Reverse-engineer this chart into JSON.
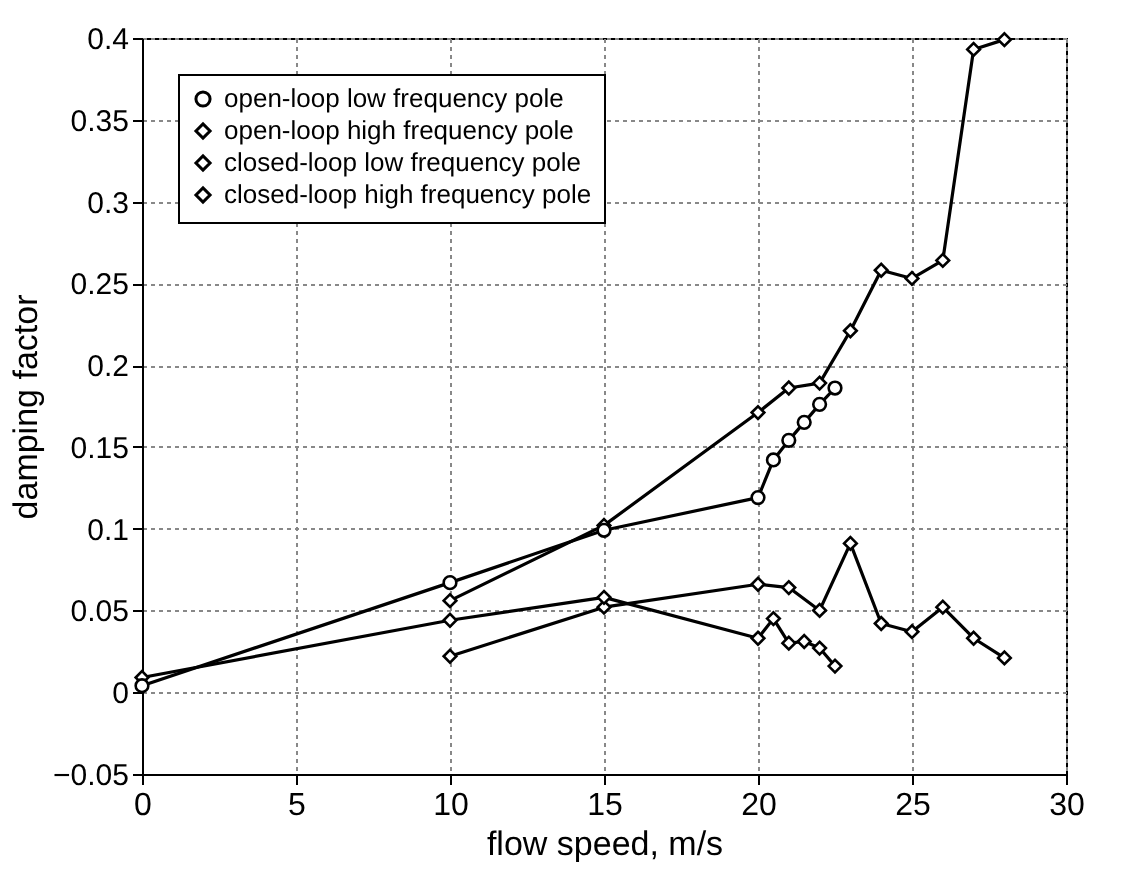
{
  "chart_data": {
    "type": "line",
    "xlabel": "flow speed, m/s",
    "ylabel": "damping factor",
    "xlim": [
      0,
      30
    ],
    "xticks": [
      0,
      5,
      10,
      15,
      20,
      25,
      30
    ],
    "ylim": [
      -0.05,
      0.4
    ],
    "yticks": [
      -0.05,
      0,
      0.05,
      0.1,
      0.15,
      0.2,
      0.25,
      0.3,
      0.35,
      0.4
    ],
    "grid": true,
    "legend": "top left",
    "line_style": "solid",
    "series": [
      {
        "name": "open-loop low frequency pole",
        "color": "#000000",
        "marker": "circle",
        "x": [
          0,
          10,
          15,
          20,
          20.5,
          21,
          21.5,
          22,
          22.5
        ],
        "values": [
          0.004,
          0.067,
          0.099,
          0.119,
          0.142,
          0.154,
          0.165,
          0.176,
          0.186
        ]
      },
      {
        "name": "open-loop high frequency pole",
        "color": "#000000",
        "marker": "diamond",
        "x": [
          0,
          10,
          15,
          20,
          20.5,
          21,
          21.5,
          22,
          22.5
        ],
        "values": [
          0.009,
          0.044,
          0.058,
          0.033,
          0.045,
          0.03,
          0.031,
          0.027,
          0.016
        ]
      },
      {
        "name": "closed-loop low frequency pole",
        "color": "#000000",
        "marker": "diamond",
        "x": [
          10,
          15,
          20,
          21,
          22,
          23,
          24,
          25,
          26,
          27,
          28
        ],
        "values": [
          0.056,
          0.102,
          0.171,
          0.186,
          0.189,
          0.221,
          0.258,
          0.253,
          0.264,
          0.393,
          0.399
        ]
      },
      {
        "name": "closed-loop high frequency pole",
        "color": "#000000",
        "marker": "diamond",
        "x": [
          10,
          15,
          20,
          21,
          22,
          23,
          24,
          25,
          26,
          27,
          28
        ],
        "values": [
          0.022,
          0.052,
          0.066,
          0.064,
          0.05,
          0.091,
          0.042,
          0.037,
          0.052,
          0.033,
          0.021
        ]
      }
    ]
  }
}
